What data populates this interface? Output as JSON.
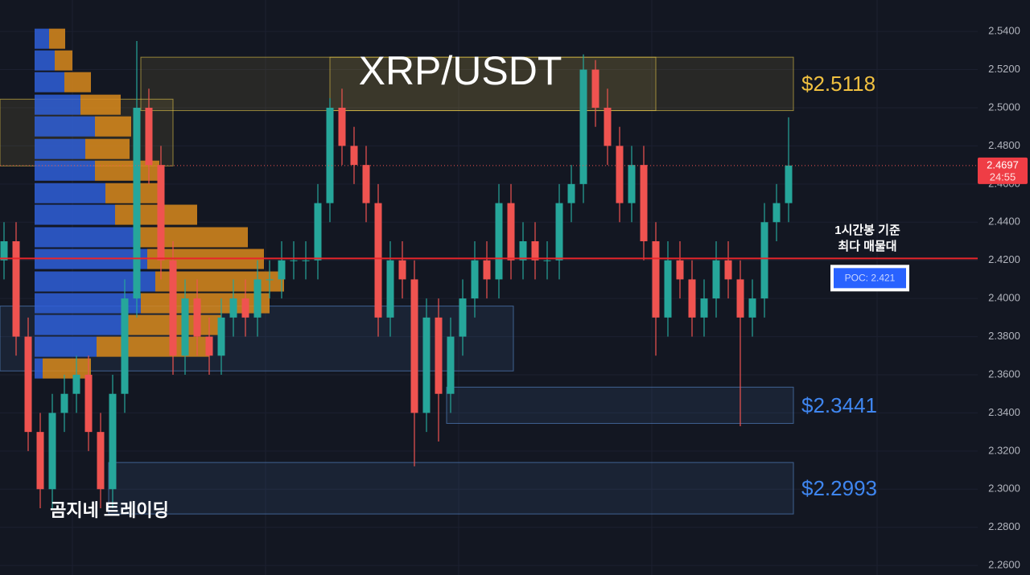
{
  "chart_data": {
    "type": "candlestick",
    "title": "XRP/USDT",
    "watermark": "곰지네 트레이딩",
    "up_color": "#26a69a",
    "down_color": "#ef5350",
    "ylim": [
      2.255,
      2.5565
    ],
    "yticks": [
      {
        "value": 2.54,
        "label": "2.5400"
      },
      {
        "value": 2.52,
        "label": "2.5200"
      },
      {
        "value": 2.5,
        "label": "2.5000"
      },
      {
        "value": 2.48,
        "label": "2.4800"
      },
      {
        "value": 2.46,
        "label": "2.4600"
      },
      {
        "value": 2.44,
        "label": "2.4400"
      },
      {
        "value": 2.42,
        "label": "2.4200"
      },
      {
        "value": 2.4,
        "label": "2.4000"
      },
      {
        "value": 2.38,
        "label": "2.3800"
      },
      {
        "value": 2.36,
        "label": "2.3600"
      },
      {
        "value": 2.34,
        "label": "2.3400"
      },
      {
        "value": 2.32,
        "label": "2.3200"
      },
      {
        "value": 2.3,
        "label": "2.3000"
      },
      {
        "value": 2.28,
        "label": "2.2800"
      },
      {
        "value": 2.26,
        "label": "2.2600"
      }
    ],
    "grid": true,
    "open": [
      2.42,
      2.43,
      2.38,
      2.33,
      2.3,
      2.34,
      2.35,
      2.36,
      2.33,
      2.3,
      2.35,
      2.4,
      2.5,
      2.47,
      2.42,
      2.37,
      2.4,
      2.38,
      2.37,
      2.39,
      2.4,
      2.39,
      2.41,
      2.41,
      2.42,
      2.42,
      2.42,
      2.45,
      2.5,
      2.48,
      2.47,
      2.45,
      2.39,
      2.42,
      2.41,
      2.34,
      2.39,
      2.35,
      2.38,
      2.4,
      2.42,
      2.41,
      2.45,
      2.42,
      2.43,
      2.42,
      2.42,
      2.45,
      2.46,
      2.52,
      2.5,
      2.48,
      2.45,
      2.47,
      2.43,
      2.39,
      2.42,
      2.41,
      2.39,
      2.4,
      2.42,
      2.41,
      2.39,
      2.4,
      2.44,
      2.45
    ],
    "high": [
      2.44,
      2.44,
      2.39,
      2.34,
      2.35,
      2.36,
      2.37,
      2.37,
      2.34,
      2.36,
      2.41,
      2.535,
      2.51,
      2.48,
      2.43,
      2.41,
      2.41,
      2.39,
      2.4,
      2.41,
      2.41,
      2.42,
      2.42,
      2.43,
      2.43,
      2.43,
      2.46,
      2.505,
      2.51,
      2.49,
      2.48,
      2.46,
      2.43,
      2.43,
      2.42,
      2.4,
      2.4,
      2.39,
      2.41,
      2.43,
      2.43,
      2.46,
      2.46,
      2.44,
      2.44,
      2.43,
      2.46,
      2.47,
      2.528,
      2.525,
      2.51,
      2.49,
      2.48,
      2.48,
      2.44,
      2.43,
      2.43,
      2.42,
      2.41,
      2.43,
      2.43,
      2.42,
      2.41,
      2.45,
      2.46,
      2.495
    ],
    "low": [
      2.41,
      2.37,
      2.32,
      2.29,
      2.29,
      2.33,
      2.34,
      2.32,
      2.29,
      2.29,
      2.34,
      2.39,
      2.46,
      2.41,
      2.36,
      2.36,
      2.37,
      2.36,
      2.36,
      2.38,
      2.38,
      2.38,
      2.4,
      2.4,
      2.41,
      2.41,
      2.41,
      2.44,
      2.47,
      2.46,
      2.44,
      2.38,
      2.38,
      2.4,
      2.312,
      2.33,
      2.325,
      2.34,
      2.37,
      2.39,
      2.4,
      2.4,
      2.41,
      2.41,
      2.41,
      2.41,
      2.41,
      2.44,
      2.45,
      2.49,
      2.47,
      2.44,
      2.44,
      2.42,
      2.37,
      2.38,
      2.4,
      2.38,
      2.38,
      2.39,
      2.4,
      2.333,
      2.38,
      2.39,
      2.43,
      2.44
    ],
    "close": [
      2.43,
      2.38,
      2.33,
      2.3,
      2.34,
      2.35,
      2.36,
      2.33,
      2.3,
      2.35,
      2.4,
      2.5,
      2.47,
      2.42,
      2.37,
      2.4,
      2.38,
      2.37,
      2.39,
      2.4,
      2.39,
      2.41,
      2.41,
      2.42,
      2.42,
      2.42,
      2.45,
      2.5,
      2.48,
      2.47,
      2.45,
      2.39,
      2.42,
      2.41,
      2.34,
      2.39,
      2.35,
      2.38,
      2.4,
      2.42,
      2.41,
      2.45,
      2.42,
      2.43,
      2.42,
      2.42,
      2.45,
      2.46,
      2.52,
      2.5,
      2.48,
      2.45,
      2.47,
      2.43,
      2.39,
      2.42,
      2.41,
      2.39,
      2.4,
      2.42,
      2.41,
      2.39,
      2.4,
      2.44,
      2.45,
      2.4697
    ],
    "last_price": 2.4697,
    "countdown": "24:55",
    "poc": {
      "value": 2.421,
      "label": "POC: 2.421"
    },
    "poc_note": [
      "1시간봉 기준",
      "최다 매물대"
    ],
    "zones": [
      {
        "low": 2.4985,
        "high": 2.5265,
        "color": "#e6c84a",
        "label": "$2.5118"
      },
      {
        "low": 2.4985,
        "high": 2.5265,
        "color": "#e6c84a"
      },
      {
        "low": 2.4695,
        "high": 2.5045,
        "color": "#e6c84a"
      },
      {
        "low": 2.362,
        "high": 2.396,
        "color": "#5b8fd6"
      },
      {
        "low": 2.3345,
        "high": 2.3535,
        "color": "#5b8fd6",
        "label": "$2.3441"
      },
      {
        "low": 2.287,
        "high": 2.314,
        "color": "#5b8fd6",
        "label": "$2.2993"
      }
    ],
    "volume_profile": {
      "levels": [
        2.5362,
        2.5248,
        2.5134,
        2.5016,
        2.4902,
        2.4784,
        2.467,
        2.4552,
        2.4439,
        2.4321,
        2.4207,
        2.4089,
        2.3975,
        2.3861,
        2.3747,
        2.3633
      ],
      "buy": [
        18,
        25,
        37,
        57,
        75,
        63,
        75,
        88,
        100,
        130,
        140,
        150,
        132,
        112,
        77,
        10
      ],
      "sell": [
        20,
        22,
        33,
        50,
        45,
        55,
        80,
        70,
        102,
        135,
        145,
        160,
        160,
        120,
        140,
        60
      ],
      "buy_color": "#2f5fd8",
      "sell_color": "#d98a1c"
    }
  }
}
